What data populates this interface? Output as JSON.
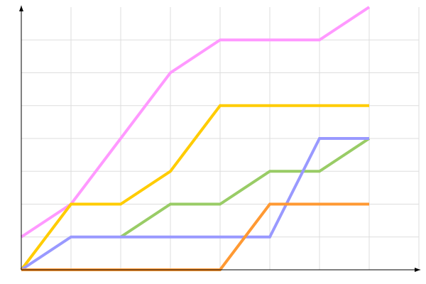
{
  "chart_data": {
    "type": "line",
    "title": "",
    "xlabel": "",
    "ylabel": "",
    "x": [
      0,
      1,
      2,
      3,
      4,
      5,
      6,
      7
    ],
    "xlim": [
      0,
      8
    ],
    "ylim": [
      0,
      8
    ],
    "grid": true,
    "legend": "none",
    "series": [
      {
        "color": "#ff99ff",
        "values": [
          1,
          2,
          4,
          6,
          7,
          7,
          7,
          8
        ]
      },
      {
        "color": "#ffcc00",
        "values": [
          0,
          2,
          2,
          3,
          5,
          5,
          5,
          5
        ]
      },
      {
        "color": "#99cc66",
        "values": [
          null,
          null,
          1,
          2,
          2,
          3,
          3,
          4
        ]
      },
      {
        "color": "#9999ff",
        "values": [
          0,
          1,
          1,
          1,
          1,
          1,
          4,
          4
        ]
      },
      {
        "color": "#ff9933",
        "values": [
          0,
          0,
          0,
          0,
          0,
          2,
          2,
          2
        ]
      }
    ]
  }
}
